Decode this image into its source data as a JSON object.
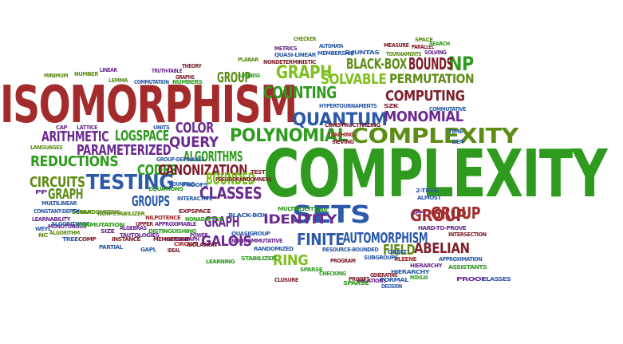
{
  "palette": {
    "red": "#a32b2b",
    "green": "#2e9a1e",
    "lime": "#7fbf1e",
    "purple": "#6b2a8f",
    "blue": "#2c5aa8",
    "maroon": "#7d1e2a",
    "olive": "#5e8d16"
  },
  "words": [
    {
      "text": "Isomorphism",
      "color": "#a32b2b"
    },
    {
      "text": "Complexity",
      "color": "#2e9a1e"
    },
    {
      "text": "Complexity",
      "color": "#5e8d16"
    },
    {
      "text": "Graph",
      "color": "#7fbf1e"
    },
    {
      "text": "Counting",
      "color": "#2e9a1e"
    },
    {
      "text": "Quantum",
      "color": "#2c5aa8"
    },
    {
      "text": "Polynomial",
      "color": "#2e9a1e"
    },
    {
      "text": "Testing",
      "color": "#2c5aa8"
    },
    {
      "text": "Sets",
      "color": "#2c5aa8"
    },
    {
      "text": "Identity",
      "color": "#6b2a8f"
    },
    {
      "text": "Group",
      "color": "#a32b2b"
    },
    {
      "text": "Reductions",
      "color": "#2e9a1e"
    },
    {
      "text": "Classes",
      "color": "#6b2a8f"
    },
    {
      "text": "NP",
      "color": "#2e9a1e"
    },
    {
      "text": "Bounds",
      "color": "#7d1e2a"
    },
    {
      "text": "Black-Box",
      "color": "#5e8d16"
    },
    {
      "text": "Computing",
      "color": "#7d1e2a"
    },
    {
      "text": "Monomial",
      "color": "#6b2a8f"
    },
    {
      "text": "Solvable",
      "color": "#7fbf1e"
    },
    {
      "text": "Permutation",
      "color": "#5e8d16"
    },
    {
      "text": "Group",
      "color": "#5e8d16"
    },
    {
      "text": "Graph",
      "color": "#5e8d16"
    },
    {
      "text": "Arithmetic",
      "color": "#6b2a8f"
    },
    {
      "text": "Logspace",
      "color": "#2e9a1e"
    },
    {
      "text": "Parameterized",
      "color": "#6b2a8f"
    },
    {
      "text": "Color",
      "color": "#6b2a8f"
    },
    {
      "text": "Query",
      "color": "#6b2a8f"
    },
    {
      "text": "Circuits",
      "color": "#5e8d16"
    },
    {
      "text": "Codes",
      "color": "#2e9a1e"
    },
    {
      "text": "Algorithms",
      "color": "#2e9a1e"
    },
    {
      "text": "Canonization",
      "color": "#7d1e2a"
    },
    {
      "text": "Bounded",
      "color": "#7fbf1e"
    },
    {
      "text": "Groups",
      "color": "#2c5aa8"
    },
    {
      "text": "Graph",
      "color": "#6b2a8f"
    },
    {
      "text": "Finite",
      "color": "#2c5aa8"
    },
    {
      "text": "Galois",
      "color": "#6b2a8f"
    },
    {
      "text": "Automorphism",
      "color": "#2c5aa8"
    },
    {
      "text": "Field",
      "color": "#5e8d16"
    },
    {
      "text": "Abelian",
      "color": "#7d1e2a"
    },
    {
      "text": "Ring",
      "color": "#7fbf1e"
    },
    {
      "text": "Group",
      "color": "#a32b2b"
    },
    {
      "text": "Minimum",
      "color": "#5e8d16"
    },
    {
      "text": "Number",
      "color": "#5e8d16"
    },
    {
      "text": "Linear",
      "color": "#6b2a8f"
    },
    {
      "text": "Lemma",
      "color": "#5e8d16"
    },
    {
      "text": "Truth-table",
      "color": "#6b2a8f"
    },
    {
      "text": "Graphs",
      "color": "#7d1e2a"
    },
    {
      "text": "Theory",
      "color": "#7d1e2a"
    },
    {
      "text": "Commutation",
      "color": "#2c5aa8"
    },
    {
      "text": "Numbers",
      "color": "#2e9a1e"
    },
    {
      "text": "Lowness",
      "color": "#2e9a1e"
    },
    {
      "text": "Planar",
      "color": "#5e8d16"
    },
    {
      "text": "Metrics",
      "color": "#6b2a8f"
    },
    {
      "text": "Quasi-linear",
      "color": "#2c5aa8"
    },
    {
      "text": "Nondeterministic",
      "color": "#7d1e2a"
    },
    {
      "text": "Checker",
      "color": "#5e8d16"
    },
    {
      "text": "Automata",
      "color": "#2c5aa8"
    },
    {
      "text": "Membership",
      "color": "#2c5aa8"
    },
    {
      "text": "E-juntas",
      "color": "#2c5aa8"
    },
    {
      "text": "Measure",
      "color": "#7d1e2a"
    },
    {
      "text": "Tournaments",
      "color": "#5e8d16"
    },
    {
      "text": "Parallel",
      "color": "#7d1e2a"
    },
    {
      "text": "Space",
      "color": "#5e8d16"
    },
    {
      "text": "Search",
      "color": "#2e9a1e"
    },
    {
      "text": "Solving",
      "color": "#6b2a8f"
    },
    {
      "text": "Hypertournaments",
      "color": "#2c5aa8"
    },
    {
      "text": "SZK",
      "color": "#7d1e2a"
    },
    {
      "text": "Constructivizing",
      "color": "#7d1e2a"
    },
    {
      "text": "Commutative",
      "color": "#2c5aa8"
    },
    {
      "text": "Teaching",
      "color": "#a32b2b"
    },
    {
      "text": "Sieving",
      "color": "#7d1e2a"
    },
    {
      "text": "Time",
      "color": "#2c5aa8"
    },
    {
      "text": "Set",
      "color": "#2c5aa8"
    },
    {
      "text": "Cap",
      "color": "#6b2a8f"
    },
    {
      "text": "Lattice",
      "color": "#6b2a8f"
    },
    {
      "text": "Units",
      "color": "#2c5aa8"
    },
    {
      "text": "Languages",
      "color": "#5e8d16"
    },
    {
      "text": "Group-definable",
      "color": "#2c5aa8"
    },
    {
      "text": "Counting",
      "color": "#2c5aa8"
    },
    {
      "text": "Proofs",
      "color": "#2c5aa8"
    },
    {
      "text": "Pseudorandomness",
      "color": "#7d1e2a"
    },
    {
      "text": "Test",
      "color": "#7d1e2a"
    },
    {
      "text": "Equations",
      "color": "#2e9a1e"
    },
    {
      "text": "PP",
      "color": "#6b2a8f"
    },
    {
      "text": "Multilinear",
      "color": "#2c5aa8"
    },
    {
      "text": "Derandomizing",
      "color": "#5e8d16"
    },
    {
      "text": "Interactive",
      "color": "#2c5aa8"
    },
    {
      "text": "Expspace",
      "color": "#7d1e2a"
    },
    {
      "text": "Nonadaptive",
      "color": "#2e9a1e"
    },
    {
      "text": "Constant-depth",
      "color": "#2c5aa8"
    },
    {
      "text": "Via",
      "color": "#5e8d16"
    },
    {
      "text": "Non-stabilizer",
      "color": "#5e8d16"
    },
    {
      "text": "Learnability",
      "color": "#6b2a8f"
    },
    {
      "text": "Monotonous",
      "color": "#6b2a8f"
    },
    {
      "text": "Nilpotence",
      "color": "#a32b2b"
    },
    {
      "text": "Approximable",
      "color": "#6b2a8f"
    },
    {
      "text": "Power",
      "color": "#6b2a8f"
    },
    {
      "text": "Black-box",
      "color": "#2c5aa8"
    },
    {
      "text": "Multiplicity",
      "color": "#2e9a1e"
    },
    {
      "text": "Low",
      "color": "#2e9a1e"
    },
    {
      "text": "Almost",
      "color": "#2c5aa8"
    },
    {
      "text": "2-tree",
      "color": "#2c5aa8"
    },
    {
      "text": "SPP",
      "color": "#6b2a8f"
    },
    {
      "text": "Weyl",
      "color": "#2c5aa8"
    },
    {
      "text": "Algorithmic",
      "color": "#2c5aa8"
    },
    {
      "text": "Permutation",
      "color": "#2e9a1e"
    },
    {
      "text": "Upper",
      "color": "#7d1e2a"
    },
    {
      "text": "Distinguishing",
      "color": "#2e9a1e"
    },
    {
      "text": "NC",
      "color": "#5e8d16"
    },
    {
      "text": "Algorithm",
      "color": "#5e8d16"
    },
    {
      "text": "Size",
      "color": "#6b2a8f"
    },
    {
      "text": "Algebras",
      "color": "#6b2a8f"
    },
    {
      "text": "Tautologies",
      "color": "#6b2a8f"
    },
    {
      "text": "Hypergraph",
      "color": "#6b2a8f"
    },
    {
      "text": "Quasigroup",
      "color": "#2c5aa8"
    },
    {
      "text": "Noncommutative",
      "color": "#6b2a8f"
    },
    {
      "text": "Hard-to-prove",
      "color": "#6b2a8f"
    },
    {
      "text": "Intersection",
      "color": "#7d1e2a"
    },
    {
      "text": "Tree",
      "color": "#2c5aa8"
    },
    {
      "text": "Comp",
      "color": "#7d1e2a"
    },
    {
      "text": "Instance",
      "color": "#7d1e2a"
    },
    {
      "text": "Membership",
      "color": "#7d1e2a"
    },
    {
      "text": "Circuit",
      "color": "#a32b2b"
    },
    {
      "text": "Isolation",
      "color": "#7d1e2a"
    },
    {
      "text": "Randomized",
      "color": "#2c5aa8"
    },
    {
      "text": "Partial",
      "color": "#2c5aa8"
    },
    {
      "text": "GapL",
      "color": "#2c5aa8"
    },
    {
      "text": "Ideal",
      "color": "#7d1e2a"
    },
    {
      "text": "Stabilizer",
      "color": "#2e9a1e"
    },
    {
      "text": "Resource-bounded",
      "color": "#2c5aa8"
    },
    {
      "text": "Orbit",
      "color": "#2c5aa8"
    },
    {
      "text": "Kleene",
      "color": "#a32b2b"
    },
    {
      "text": "Approximation",
      "color": "#2c5aa8"
    },
    {
      "text": "Learning",
      "color": "#2e9a1e"
    },
    {
      "text": "Program",
      "color": "#7d1e2a"
    },
    {
      "text": "Subgroups",
      "color": "#2c5aa8"
    },
    {
      "text": "Hierarchy",
      "color": "#6b2a8f"
    },
    {
      "text": "Assistants",
      "color": "#2e9a1e"
    },
    {
      "text": "Hierarchy",
      "color": "#2c5aa8"
    },
    {
      "text": "Sparse",
      "color": "#2e9a1e"
    },
    {
      "text": "Checking",
      "color": "#2e9a1e"
    },
    {
      "text": "Generating",
      "color": "#7d1e2a"
    },
    {
      "text": "Relations",
      "color": "#6b2a8f"
    },
    {
      "text": "Modular",
      "color": "#2e9a1e"
    },
    {
      "text": "Proof",
      "color": "#6b2a8f"
    },
    {
      "text": "Classes",
      "color": "#2c5aa8"
    },
    {
      "text": "Closure",
      "color": "#7d1e2a"
    },
    {
      "text": "Sparse",
      "color": "#2e9a1e"
    },
    {
      "text": "Proofs",
      "color": "#7d1e2a"
    },
    {
      "text": "Formal",
      "color": "#2c5aa8"
    },
    {
      "text": "Decision",
      "color": "#2c5aa8"
    },
    {
      "text": "Series",
      "color": "#6b2a8f"
    }
  ]
}
